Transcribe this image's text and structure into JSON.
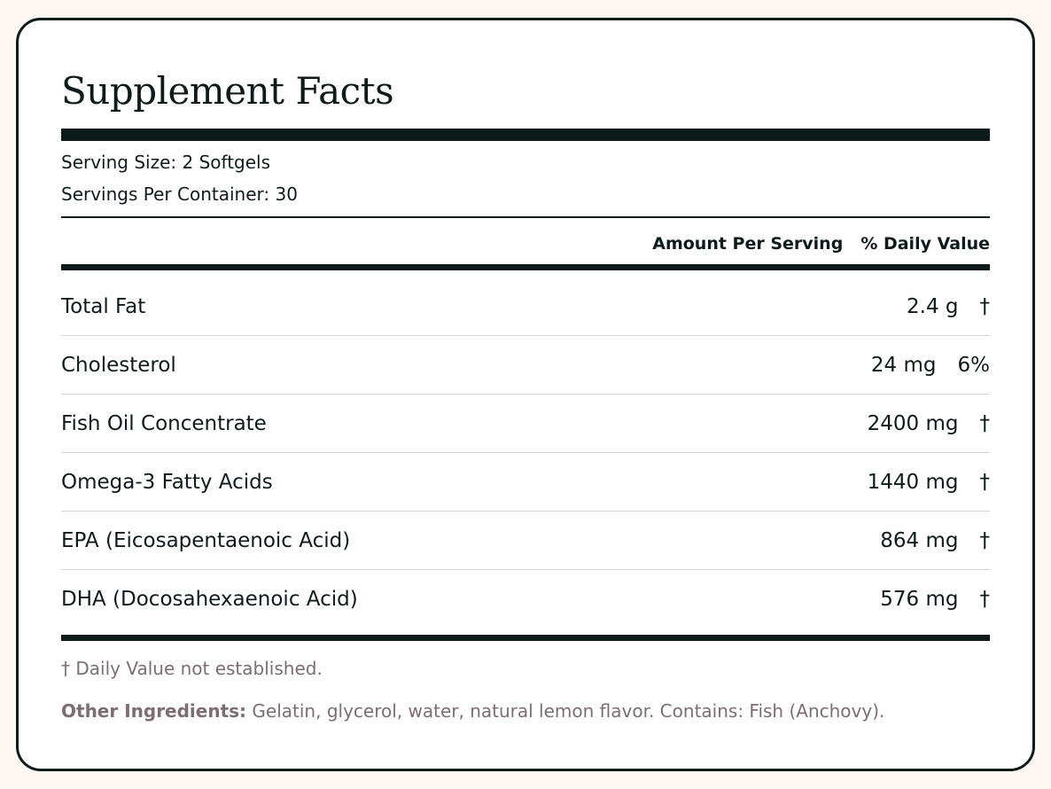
{
  "title": "Supplement Facts",
  "serving_size": "Serving Size: 2 Softgels",
  "servings_per_container": "Servings Per Container: 30",
  "headers": {
    "amount": "Amount Per Serving",
    "daily_value": "% Daily Value"
  },
  "rows": [
    {
      "name": "Total Fat",
      "amount": "2.4 g",
      "daily_value": "†"
    },
    {
      "name": "Cholesterol",
      "amount": "24 mg",
      "daily_value": "6%"
    },
    {
      "name": "Fish Oil Concentrate",
      "amount": "2400 mg",
      "daily_value": "†"
    },
    {
      "name": "Omega-3 Fatty Acids",
      "amount": "1440 mg",
      "daily_value": "†"
    },
    {
      "name": "EPA (Eicosapentaenoic Acid)",
      "amount": "864 mg",
      "daily_value": "†"
    },
    {
      "name": "DHA (Docosahexaenoic Acid)",
      "amount": "576 mg",
      "daily_value": "†"
    }
  ],
  "footnote": "† Daily Value not established.",
  "other_ingredients": {
    "label": "Other Ingredients:",
    "text": "Gelatin, glycerol, water, natural lemon flavor. Contains: Fish (Anchovy)."
  }
}
